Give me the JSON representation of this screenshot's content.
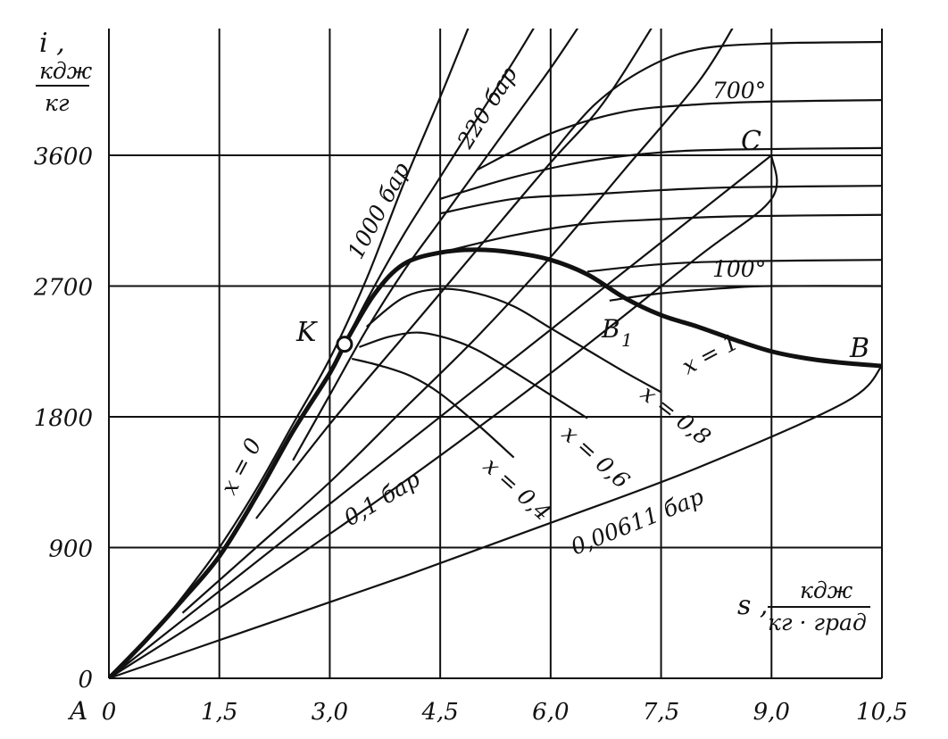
{
  "chart_data": {
    "type": "line",
    "title": "",
    "xlabel": {
      "symbol": "s ,",
      "unit_num": "кдж",
      "unit_den": "кг · град"
    },
    "ylabel": {
      "symbol": "i ,",
      "unit_num": "кдж",
      "unit_den": "кг"
    },
    "xlim": [
      0,
      10.5
    ],
    "ylim": [
      0,
      4500
    ],
    "grid": true,
    "x_ticks": [
      {
        "v": 0,
        "label": "0"
      },
      {
        "v": 1.5,
        "label": "1,5"
      },
      {
        "v": 3.0,
        "label": "3,0"
      },
      {
        "v": 4.5,
        "label": "4,5"
      },
      {
        "v": 6.0,
        "label": "6,0"
      },
      {
        "v": 7.5,
        "label": "7,5"
      },
      {
        "v": 9.0,
        "label": "9,0"
      },
      {
        "v": 10.5,
        "label": "10,5"
      }
    ],
    "y_ticks": [
      {
        "v": 0,
        "label": "0"
      },
      {
        "v": 900,
        "label": "900"
      },
      {
        "v": 1800,
        "label": "1800"
      },
      {
        "v": 2700,
        "label": "2700"
      },
      {
        "v": 3600,
        "label": "3600"
      }
    ],
    "origin_label": "A",
    "point_labels": {
      "K": "K",
      "B": "B",
      "B1": "B",
      "B1_sub": "1",
      "C": "C"
    },
    "saturation_curves": [
      {
        "name": "x=0",
        "label": "x = 0",
        "points": [
          [
            0,
            0
          ],
          [
            0.5,
            260
          ],
          [
            1.0,
            540
          ],
          [
            1.5,
            840
          ],
          [
            2.0,
            1250
          ],
          [
            2.5,
            1700
          ],
          [
            3.0,
            2100
          ],
          [
            3.2,
            2300
          ]
        ]
      },
      {
        "name": "x=1",
        "label": "x = 1",
        "points": [
          [
            3.2,
            2300
          ],
          [
            3.6,
            2640
          ],
          [
            4.0,
            2850
          ],
          [
            4.5,
            2930
          ],
          [
            5.0,
            2950
          ],
          [
            5.5,
            2930
          ],
          [
            6.0,
            2880
          ],
          [
            6.5,
            2780
          ],
          [
            7.0,
            2620
          ],
          [
            7.5,
            2500
          ],
          [
            8.0,
            2420
          ],
          [
            8.5,
            2330
          ],
          [
            9.0,
            2250
          ],
          [
            9.5,
            2200
          ],
          [
            10.0,
            2170
          ],
          [
            10.5,
            2150
          ]
        ]
      }
    ],
    "quality_lines": [
      {
        "label": "x = 0,8",
        "points": [
          [
            3.5,
            2420
          ],
          [
            4.0,
            2620
          ],
          [
            4.5,
            2680
          ],
          [
            5.0,
            2650
          ],
          [
            5.5,
            2560
          ],
          [
            6.0,
            2410
          ],
          [
            6.5,
            2260
          ],
          [
            7.0,
            2110
          ],
          [
            7.5,
            1970
          ]
        ]
      },
      {
        "label": "x = 0,6",
        "points": [
          [
            3.4,
            2280
          ],
          [
            3.8,
            2350
          ],
          [
            4.2,
            2380
          ],
          [
            4.6,
            2340
          ],
          [
            5.0,
            2260
          ],
          [
            5.5,
            2110
          ],
          [
            6.0,
            1950
          ],
          [
            6.5,
            1790
          ]
        ]
      },
      {
        "label": "x = 0,4",
        "points": [
          [
            3.3,
            2200
          ],
          [
            3.7,
            2150
          ],
          [
            4.1,
            2080
          ],
          [
            4.5,
            1960
          ],
          [
            5.0,
            1750
          ],
          [
            5.5,
            1520
          ]
        ]
      }
    ],
    "isobars": [
      {
        "label": "1000 бар",
        "points": [
          [
            0,
            0
          ],
          [
            0.5,
            250
          ],
          [
            1.0,
            560
          ],
          [
            1.5,
            900
          ],
          [
            2.0,
            1300
          ],
          [
            2.5,
            1750
          ],
          [
            3.0,
            2200
          ],
          [
            3.5,
            2750
          ],
          [
            4.0,
            3400
          ],
          [
            4.5,
            4000
          ],
          [
            4.9,
            4500
          ]
        ]
      },
      {
        "label": "220 бар",
        "points": [
          [
            3.2,
            2300
          ],
          [
            3.5,
            2600
          ],
          [
            4.0,
            3050
          ],
          [
            4.5,
            3450
          ],
          [
            5.0,
            3850
          ],
          [
            5.5,
            4250
          ],
          [
            5.8,
            4500
          ]
        ]
      },
      {
        "label": "",
        "points": [
          [
            2.5,
            1500
          ],
          [
            3.0,
            1950
          ],
          [
            3.5,
            2400
          ],
          [
            4.0,
            2800
          ],
          [
            4.5,
            3150
          ],
          [
            5.0,
            3500
          ],
          [
            5.5,
            3850
          ],
          [
            6.0,
            4200
          ],
          [
            6.4,
            4500
          ]
        ]
      },
      {
        "label": "",
        "points": [
          [
            2.0,
            1100
          ],
          [
            3.0,
            1750
          ],
          [
            4.0,
            2350
          ],
          [
            5.0,
            2950
          ],
          [
            6.0,
            3550
          ],
          [
            6.7,
            3950
          ],
          [
            7.4,
            4500
          ]
        ]
      },
      {
        "label": "",
        "points": [
          [
            1.0,
            450
          ],
          [
            2.0,
            900
          ],
          [
            3.0,
            1350
          ],
          [
            4.0,
            1850
          ],
          [
            5.0,
            2350
          ],
          [
            6.0,
            2900
          ],
          [
            7.0,
            3500
          ],
          [
            8.0,
            4100
          ],
          [
            8.5,
            4500
          ]
        ]
      },
      {
        "label": "0,1 бар",
        "points": [
          [
            0,
            0
          ],
          [
            2.0,
            650
          ],
          [
            4.0,
            1350
          ],
          [
            6.0,
            2100
          ],
          [
            8.0,
            2900
          ],
          [
            9.0,
            3300
          ],
          [
            9.0,
            3600
          ]
        ]
      },
      {
        "label": "0,00611 бар",
        "points": [
          [
            0,
            0
          ],
          [
            2.0,
            350
          ],
          [
            4.0,
            700
          ],
          [
            6.0,
            1070
          ],
          [
            8.0,
            1450
          ],
          [
            10.0,
            1900
          ],
          [
            10.5,
            2150
          ]
        ]
      }
    ],
    "isotherms": [
      {
        "label": "700°",
        "points": [
          [
            6.0,
            3600
          ],
          [
            6.6,
            3950
          ],
          [
            7.3,
            4200
          ],
          [
            8.0,
            4330
          ],
          [
            9.0,
            4370
          ],
          [
            10.5,
            4380
          ]
        ]
      },
      {
        "label": "",
        "points": [
          [
            5.0,
            3500
          ],
          [
            6.0,
            3750
          ],
          [
            7.0,
            3900
          ],
          [
            8.0,
            3950
          ],
          [
            9.0,
            3970
          ],
          [
            10.5,
            3980
          ]
        ]
      },
      {
        "label": "",
        "points": [
          [
            4.5,
            3300
          ],
          [
            5.5,
            3450
          ],
          [
            6.5,
            3560
          ],
          [
            7.5,
            3620
          ],
          [
            8.5,
            3640
          ],
          [
            10.5,
            3650
          ]
        ]
      },
      {
        "label": "",
        "points": [
          [
            4.5,
            3200
          ],
          [
            5.5,
            3300
          ],
          [
            6.5,
            3330
          ],
          [
            7.5,
            3360
          ],
          [
            8.5,
            3380
          ],
          [
            10.5,
            3390
          ]
        ]
      },
      {
        "label": "",
        "points": [
          [
            4.5,
            2930
          ],
          [
            5.5,
            3050
          ],
          [
            6.5,
            3130
          ],
          [
            7.5,
            3160
          ],
          [
            8.5,
            3180
          ],
          [
            10.5,
            3190
          ]
        ]
      },
      {
        "label": "",
        "points": [
          [
            6.5,
            2800
          ],
          [
            7.5,
            2850
          ],
          [
            8.5,
            2870
          ],
          [
            10.5,
            2880
          ]
        ]
      },
      {
        "label": "100°",
        "points": [
          [
            6.8,
            2600
          ],
          [
            7.5,
            2650
          ],
          [
            8.5,
            2690
          ],
          [
            9.0,
            2700
          ],
          [
            10.5,
            2700
          ]
        ]
      }
    ],
    "line_C": {
      "label": "C",
      "points": [
        [
          0,
          0
        ],
        [
          3.0,
          1200
        ],
        [
          6.0,
          2400
        ],
        [
          9.0,
          3600
        ]
      ]
    }
  }
}
